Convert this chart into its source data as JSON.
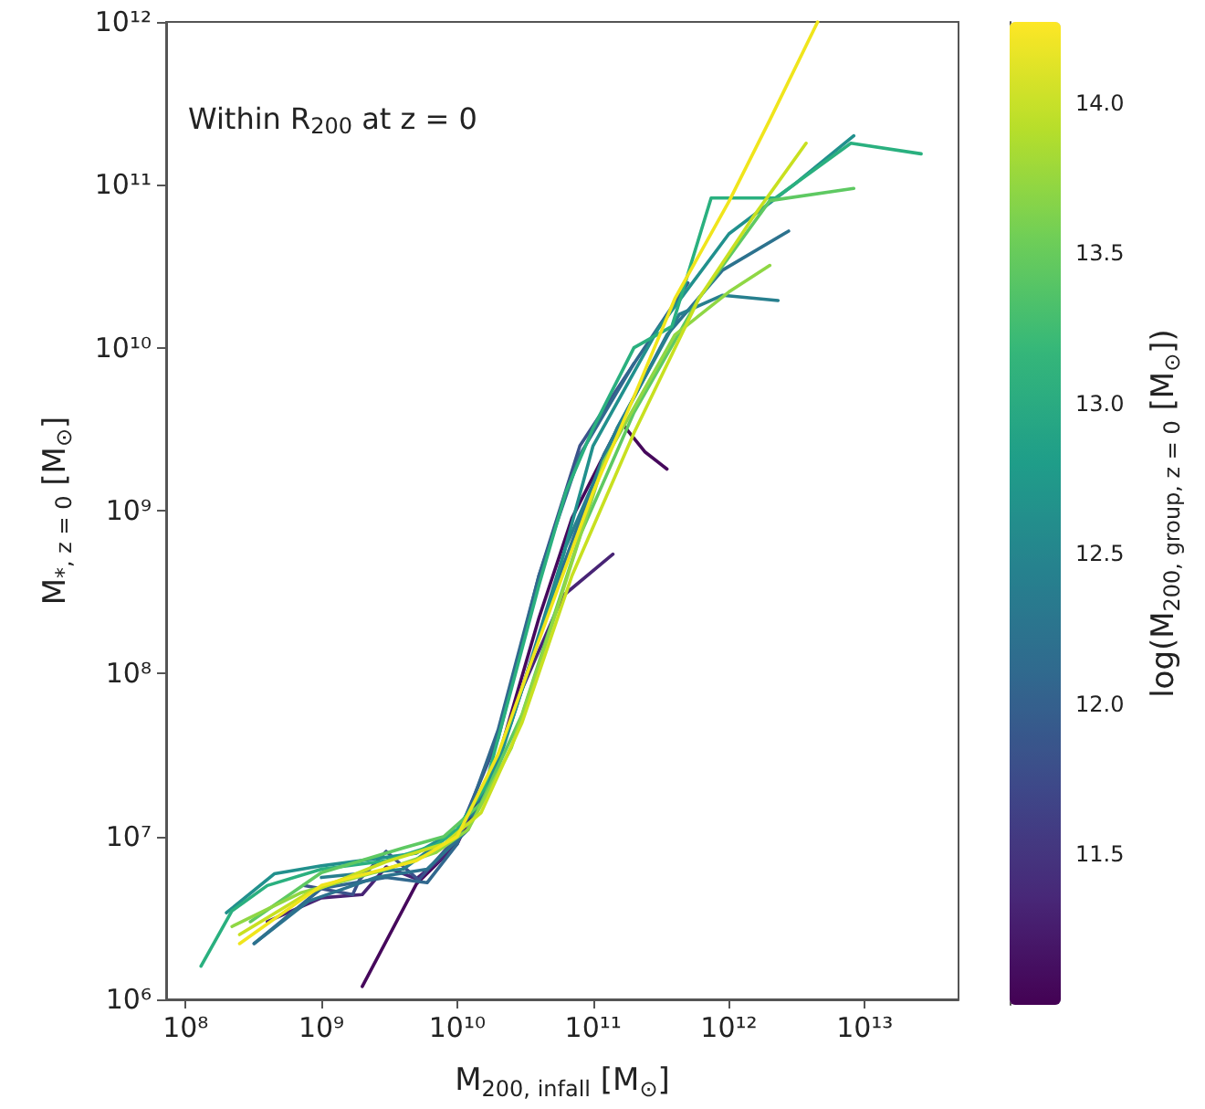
{
  "chart_data": {
    "type": "line",
    "xlabel": "M$_{200, infall}$ [M$_{⊙}$]",
    "ylabel": "M$_{*, z = 0}$ [M$_{⊙}$]",
    "clabel": "log(M$_{200, group, z = 0}$ [M$_{⊙}$])",
    "annotations": [
      "Within R$_{200}$ at z = 0"
    ],
    "log": "xy",
    "grid": false,
    "marker": "none",
    "line_style": "solid",
    "xlim": [
      72000000.0,
      49000000000000.0
    ],
    "xticks": [
      {
        "value": 100000000.0,
        "label": "10⁸"
      },
      {
        "value": 1000000000.0,
        "label": "10⁹"
      },
      {
        "value": 10000000000.0,
        "label": "10¹⁰"
      },
      {
        "value": 100000000000.0,
        "label": "10¹¹"
      },
      {
        "value": 1000000000000.0,
        "label": "10¹²"
      },
      {
        "value": 10000000000000.0,
        "label": "10¹³"
      }
    ],
    "ylim": [
      1000000.0,
      1000000000000.0
    ],
    "yticks": [
      {
        "value": 1000000.0,
        "label": "10⁶"
      },
      {
        "value": 10000000.0,
        "label": "10⁷"
      },
      {
        "value": 100000000.0,
        "label": "10⁸"
      },
      {
        "value": 1000000000.0,
        "label": "10⁹"
      },
      {
        "value": 10000000000.0,
        "label": "10¹⁰"
      },
      {
        "value": 100000000000.0,
        "label": "10¹¹"
      },
      {
        "value": 1000000000000.0,
        "label": "10¹²"
      }
    ],
    "clim": [
      11.0,
      14.27
    ],
    "cticks": [
      11.5,
      {
        "value": 12,
        "label": "12.0"
      },
      12.5,
      {
        "value": 13,
        "label": "13.0"
      },
      13.5,
      {
        "value": 14,
        "label": "14.0"
      }
    ],
    "series": [
      {
        "color": "#46085c",
        "x": [
          2000000000.0,
          5000000000.0,
          10000000000.0,
          20000000000.0,
          40000000000.0,
          70000000000.0,
          160000000000.0,
          240000000000.0,
          350000000000.0
        ],
        "values": [
          1200000.0,
          5100000.0,
          9000000.0,
          30000000.0,
          220000000.0,
          900000000.0,
          3500000000.0,
          2300000000.0,
          1800000000.0
        ]
      },
      {
        "color": "#482475",
        "x": [
          400000000.0,
          1000000000.0,
          2000000000.0,
          3000000000.0,
          5000000000.0,
          8000000000.0,
          15000000000.0,
          30000000000.0,
          60000000000.0,
          140000000000.0
        ],
        "values": [
          3000000.0,
          4200000.0,
          4400000.0,
          6500000.0,
          5500000.0,
          7500000.0,
          16000000.0,
          80000000.0,
          300000000.0,
          540000000.0
        ]
      },
      {
        "color": "#3b528b",
        "x": [
          740000000.0,
          1700000000.0,
          1900000000.0,
          3000000000.0,
          5200000000.0,
          10000000000.0,
          20000000000.0,
          40000000000.0,
          80000000000.0,
          200000000000.0
        ],
        "values": [
          5000000.0,
          4400000.0,
          5400000.0,
          8100000.0,
          5400000.0,
          10000000.0,
          40000000.0,
          400000000.0,
          2500000000.0,
          8000000000.0
        ]
      },
      {
        "color": "#31688e",
        "x": [
          320000000.0,
          1000000000.0,
          3000000000.0,
          6000000000.0,
          10000000000.0,
          20000000000.0,
          40000000000.0,
          80000000000.0,
          200000000000.0,
          500000000000.0
        ],
        "values": [
          2200000.0,
          4800000.0,
          5600000.0,
          5200000.0,
          9000000.0,
          45000000.0,
          400000000.0,
          2200000000.0,
          8000000000.0,
          25000000000.0
        ]
      },
      {
        "color": "#2c728e",
        "x": [
          320000000.0,
          800000000.0,
          2500000000.0,
          6000000000.0,
          12000000000.0,
          25000000000.0,
          50000000000.0,
          120000000000.0,
          350000000000.0,
          900000000000.0,
          2750000000000.0
        ],
        "values": [
          2200000.0,
          4000000.0,
          5600000.0,
          6300000.0,
          11000000.0,
          50000000.0,
          300000000.0,
          2200000000.0,
          12000000000.0,
          30000000000.0,
          52000000000.0
        ]
      },
      {
        "color": "#277f8e",
        "x": [
          1000000000.0,
          4000000000.0,
          10000000000.0,
          15000000000.0,
          30000000000.0,
          63000000000.0,
          150000000000.0,
          430000000000.0,
          900000000000.0,
          2300000000000.0
        ],
        "values": [
          5600000.0,
          6300000.0,
          11000000.0,
          16000000.0,
          80000000.0,
          600000000.0,
          3200000000.0,
          16000000000.0,
          21000000000.0,
          19500000000.0
        ]
      },
      {
        "color": "#21908d",
        "x": [
          200000000.0,
          450000000.0,
          1000000000.0,
          5000000000.0,
          10000000000.0,
          20000000000.0,
          50000000000.0,
          100000000000.0,
          300000000000.0,
          1000000000000.0,
          3000000000000.0,
          8300000000000.0
        ],
        "values": [
          3400000.0,
          5900000.0,
          6600000.0,
          7900000.0,
          11000000.0,
          28000000.0,
          300000000.0,
          2500000000.0,
          13000000000.0,
          50000000000.0,
          100000000000.0,
          200000000000.0
        ]
      },
      {
        "color": "#2ab07f",
        "x": [
          130000000.0,
          220000000.0,
          400000000.0,
          1000000000.0,
          3000000000.0,
          7000000000.0,
          10000000000.0,
          16000000000.0,
          25000000000.0,
          40000000000.0,
          63000000000.0,
          100000000000.0,
          200000000000.0,
          380000000000.0,
          740000000000.0,
          2200000000000.0,
          7900000000000.0,
          26000000000000.0
        ],
        "values": [
          1600000.0,
          3500000.0,
          5000000.0,
          6300000.0,
          7100000.0,
          8900000.0,
          11000000.0,
          20000000.0,
          80000000.0,
          350000000.0,
          1300000000.0,
          3200000000.0,
          10000000000.0,
          13500000000.0,
          83000000000.0,
          83000000000.0,
          180000000000.0,
          155000000000.0
        ]
      },
      {
        "color": "#5ec962",
        "x": [
          300000000.0,
          1000000000.0,
          4000000000.0,
          8000000000.0,
          15000000000.0,
          30000000000.0,
          80000000000.0,
          200000000000.0,
          600000000000.0,
          2000000000000.0,
          8300000000000.0
        ],
        "values": [
          3000000.0,
          6000000.0,
          8500000.0,
          10000000.0,
          16000000.0,
          56000000.0,
          700000000.0,
          4000000000.0,
          20000000000.0,
          80000000000.0,
          95000000000.0
        ]
      },
      {
        "color": "#8fd744",
        "x": [
          220000000.0,
          700000000.0,
          3000000000.0,
          7000000000.0,
          12000000000.0,
          25000000000.0,
          50000000000.0,
          120000000000.0,
          400000000000.0,
          1000000000000.0,
          2000000000000.0
        ],
        "values": [
          2800000.0,
          4500000.0,
          6300000.0,
          8000000.0,
          11000000.0,
          35000000.0,
          200000000.0,
          2000000000.0,
          12000000000.0,
          22000000000.0,
          32000000000.0
        ]
      },
      {
        "color": "#c8e020",
        "x": [
          250000000.0,
          800000000.0,
          3000000000.0,
          8000000000.0,
          15000000000.0,
          30000000000.0,
          70000000000.0,
          200000000000.0,
          600000000000.0,
          1500000000000.0,
          3700000000000.0
        ],
        "values": [
          2500000.0,
          4500000.0,
          7000000.0,
          9000000.0,
          14000000.0,
          50000000.0,
          400000000.0,
          3000000000.0,
          20000000000.0,
          63000000000.0,
          180000000000.0
        ]
      },
      {
        "color": "#f0e51c",
        "x": [
          250000000.0,
          1000000000.0,
          5000000000.0,
          10000000000.0,
          20000000000.0,
          40000000000.0,
          100000000000.0,
          200000000000.0,
          400000000000.0,
          1000000000000.0,
          2000000000000.0,
          4500000000000.0
        ],
        "values": [
          2200000.0,
          5000000.0,
          7100000.0,
          10000000.0,
          32000000.0,
          160000000.0,
          1300000000.0,
          5000000000.0,
          20000000000.0,
          79000000000.0,
          250000000000.0,
          1000000000000.0
        ]
      }
    ]
  }
}
